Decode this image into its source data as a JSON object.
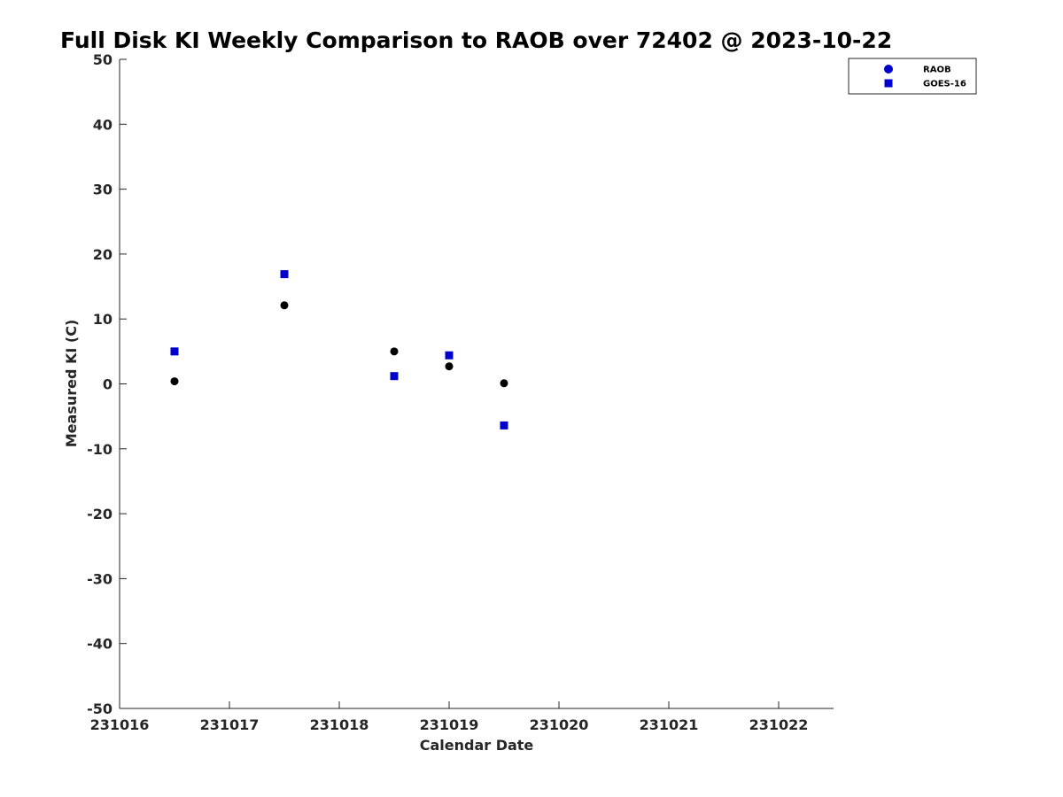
{
  "chart_data": {
    "type": "scatter",
    "title": "Full Disk KI Weekly Comparison to RAOB over 72402 @ 2023-10-22",
    "xlabel": "Calendar Date",
    "ylabel": "Measured KI (C)",
    "x_ticks": [
      "231016",
      "231017",
      "231018",
      "231019",
      "231020",
      "231021",
      "231022"
    ],
    "x_tick_values": [
      0,
      1,
      2,
      3,
      4,
      5,
      6
    ],
    "xlim": [
      0,
      6.5
    ],
    "y_ticks": [
      "50",
      "40",
      "30",
      "20",
      "10",
      "0",
      "-10",
      "-20",
      "-30",
      "-40",
      "-50"
    ],
    "ylim": [
      -50,
      50
    ],
    "grid": false,
    "legend_position": "top-right",
    "series": [
      {
        "name": "RAOB",
        "marker": "circle",
        "color": "#000000",
        "legend_color": "#0000cc",
        "x": [
          0.5,
          1.5,
          2.5,
          3.0,
          3.5
        ],
        "y": [
          0.4,
          12.1,
          5.0,
          2.7,
          0.1
        ]
      },
      {
        "name": "GOES-16",
        "marker": "square",
        "color": "#0000cc",
        "legend_color": "#0000cc",
        "x": [
          0.5,
          1.5,
          2.5,
          3.0,
          3.5
        ],
        "y": [
          5.0,
          16.9,
          1.2,
          4.4,
          -6.4
        ]
      }
    ]
  }
}
